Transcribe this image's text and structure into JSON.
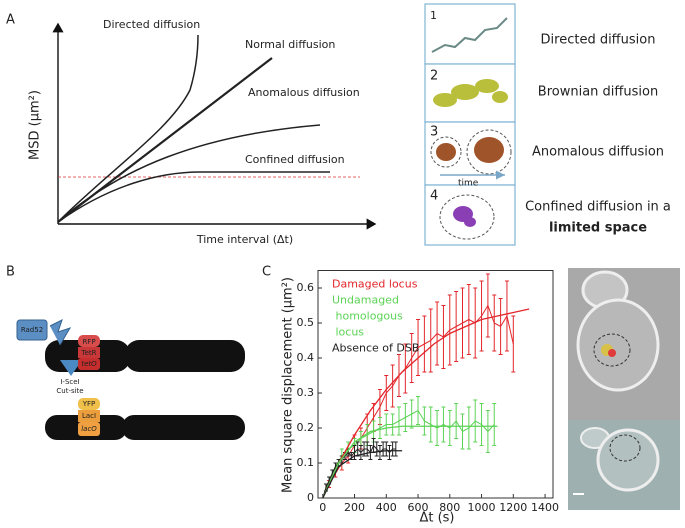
{
  "panel_labels": [
    "A",
    "B",
    "C"
  ],
  "schematic": {
    "curves": [
      "Directed diffusion",
      "Normal diffusion",
      "Anomalous diffusion",
      "Confined diffusion"
    ],
    "y_label": "MSD (μm²)",
    "x_label": "Time interval (Δt)"
  },
  "modes": [
    {
      "number": 1,
      "label": "Directed diffusion"
    },
    {
      "number": 2,
      "label": "Brownian diffusion"
    },
    {
      "number": 3,
      "label": "Anomalous diffusion",
      "note": "time"
    },
    {
      "number": 4,
      "label": "Confined diffusion in a",
      "label_bold": "limited space"
    }
  ],
  "construct": {
    "protein": "Rad52",
    "top": [
      "RFP",
      "TetR",
      "tetO"
    ],
    "cut": [
      "I-SceI",
      "Cut-site"
    ],
    "bottom": [
      "YFP",
      "LacI",
      "lacO"
    ]
  },
  "chart_data": {
    "type": "errorbar",
    "x_label": "Δt (s)",
    "y_label": "Mean square displacement (μm²)",
    "xlim": [
      -30,
      1450
    ],
    "ylim": [
      0,
      0.65
    ],
    "xticks": [
      0,
      200,
      400,
      600,
      800,
      1000,
      1200,
      1400
    ],
    "yticks": [
      0,
      0.1,
      0.2,
      0.3,
      0.4,
      0.5,
      0.6
    ],
    "series": [
      {
        "name": "Damaged locus",
        "color": "#e3262b",
        "x": [
          0,
          40,
          80,
          120,
          160,
          200,
          240,
          280,
          320,
          360,
          400,
          440,
          480,
          520,
          560,
          600,
          640,
          680,
          720,
          760,
          800,
          840,
          880,
          920,
          960,
          1000,
          1040,
          1080,
          1120,
          1160,
          1200
        ],
        "values": [
          0,
          0.04,
          0.07,
          0.1,
          0.12,
          0.15,
          0.17,
          0.2,
          0.23,
          0.26,
          0.3,
          0.32,
          0.35,
          0.37,
          0.4,
          0.43,
          0.44,
          0.45,
          0.47,
          0.46,
          0.48,
          0.49,
          0.5,
          0.51,
          0.5,
          0.52,
          0.55,
          0.5,
          0.49,
          0.52,
          0.44
        ],
        "errors": [
          0,
          0.01,
          0.01,
          0.02,
          0.02,
          0.03,
          0.03,
          0.04,
          0.04,
          0.05,
          0.05,
          0.06,
          0.06,
          0.07,
          0.07,
          0.08,
          0.08,
          0.09,
          0.09,
          0.09,
          0.1,
          0.1,
          0.1,
          0.1,
          0.1,
          0.1,
          0.09,
          0.08,
          0.08,
          0.1,
          0.08
        ]
      },
      {
        "name": "Undamaged homologous locus",
        "color": "#5cd356",
        "x": [
          0,
          40,
          80,
          120,
          160,
          200,
          240,
          280,
          320,
          360,
          400,
          440,
          480,
          520,
          560,
          600,
          640,
          680,
          720,
          760,
          800,
          840,
          880,
          920,
          960,
          1000,
          1040,
          1080
        ],
        "values": [
          0,
          0.05,
          0.09,
          0.12,
          0.14,
          0.15,
          0.17,
          0.18,
          0.19,
          0.2,
          0.21,
          0.21,
          0.22,
          0.23,
          0.24,
          0.25,
          0.22,
          0.21,
          0.2,
          0.21,
          0.2,
          0.22,
          0.19,
          0.2,
          0.22,
          0.21,
          0.19,
          0.21
        ],
        "errors": [
          0,
          0.01,
          0.01,
          0.02,
          0.02,
          0.02,
          0.02,
          0.03,
          0.03,
          0.03,
          0.03,
          0.03,
          0.04,
          0.04,
          0.04,
          0.04,
          0.04,
          0.05,
          0.05,
          0.05,
          0.05,
          0.05,
          0.05,
          0.06,
          0.06,
          0.06,
          0.06,
          0.06
        ]
      },
      {
        "name": "Absence of DSB",
        "color": "#222222",
        "x": [
          0,
          20,
          40,
          60,
          80,
          100,
          120,
          140,
          160,
          180,
          200,
          220,
          240,
          260,
          280,
          300,
          320,
          340,
          360,
          380,
          400,
          420,
          440,
          460
        ],
        "values": [
          0,
          0.03,
          0.05,
          0.07,
          0.09,
          0.1,
          0.11,
          0.12,
          0.13,
          0.12,
          0.13,
          0.14,
          0.13,
          0.14,
          0.14,
          0.13,
          0.15,
          0.14,
          0.13,
          0.14,
          0.14,
          0.13,
          0.14,
          0.14
        ],
        "errors": [
          0,
          0.01,
          0.01,
          0.01,
          0.01,
          0.01,
          0.01,
          0.01,
          0.01,
          0.01,
          0.02,
          0.02,
          0.02,
          0.02,
          0.02,
          0.02,
          0.02,
          0.02,
          0.02,
          0.02,
          0.02,
          0.02,
          0.02,
          0.02
        ]
      }
    ],
    "fits": [
      {
        "color": "#e3262b",
        "x": [
          0,
          100,
          200,
          300,
          400,
          500,
          600,
          700,
          800,
          900,
          1000,
          1100,
          1200,
          1300
        ],
        "values": [
          0,
          0.1,
          0.18,
          0.25,
          0.31,
          0.36,
          0.4,
          0.44,
          0.47,
          0.49,
          0.51,
          0.52,
          0.53,
          0.54
        ]
      },
      {
        "color": "#5cd356",
        "x": [
          0,
          100,
          200,
          300,
          400,
          500,
          1100
        ],
        "values": [
          0,
          0.1,
          0.16,
          0.19,
          0.2,
          0.205,
          0.205
        ]
      },
      {
        "color": "#222222",
        "x": [
          0,
          100,
          200,
          300,
          400,
          500
        ],
        "values": [
          0,
          0.09,
          0.12,
          0.13,
          0.135,
          0.135
        ]
      }
    ]
  }
}
